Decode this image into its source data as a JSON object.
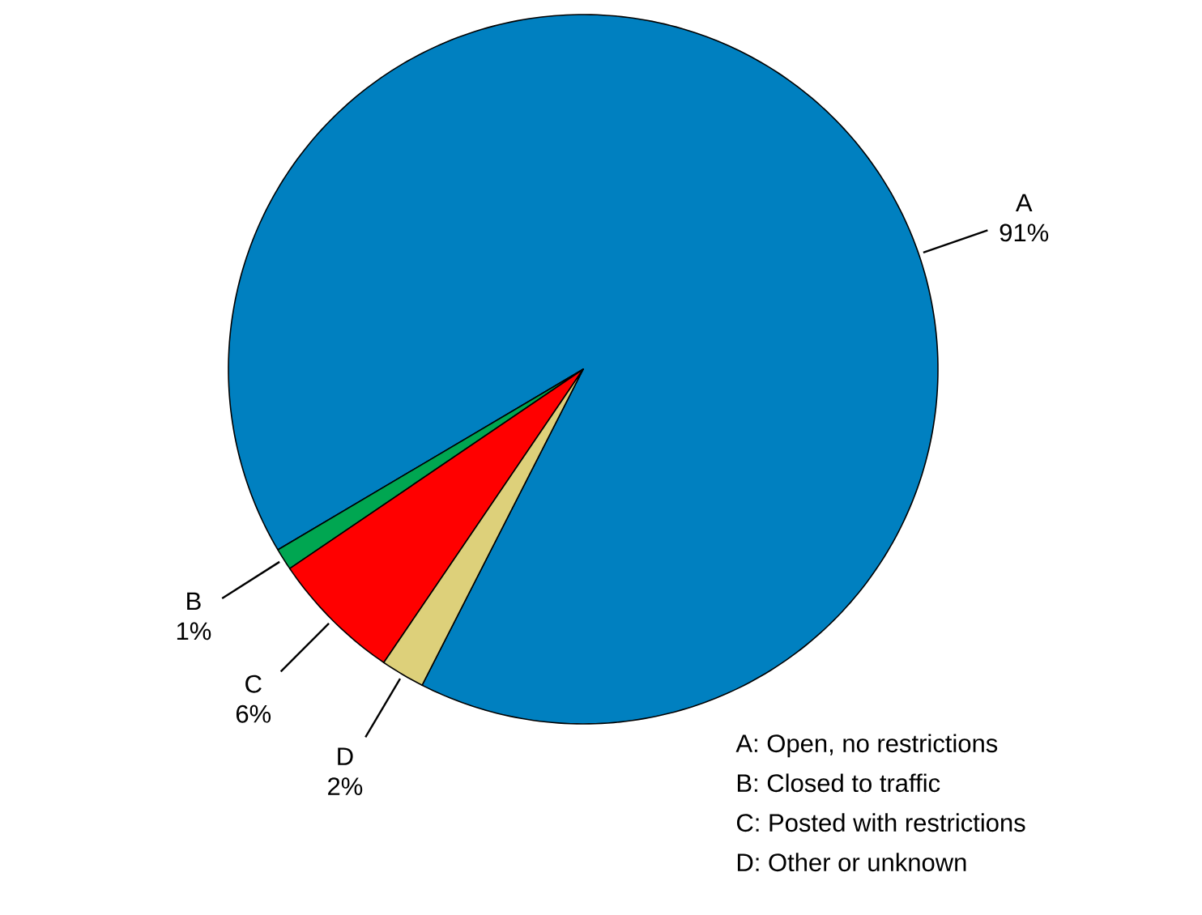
{
  "chart_data": {
    "type": "pie",
    "categories": [
      "A",
      "B",
      "C",
      "D"
    ],
    "values": [
      91,
      1,
      6,
      2
    ],
    "value_labels": [
      "91%",
      "1%",
      "6%",
      "2%"
    ],
    "colors": [
      "#0080c0",
      "#00a651",
      "#ff0000",
      "#ddd07a"
    ],
    "annotations": [
      "A:  Open, no restrictions",
      "B:  Closed to traffic",
      "C:  Posted with restrictions",
      "D:  Other or unknown"
    ]
  }
}
